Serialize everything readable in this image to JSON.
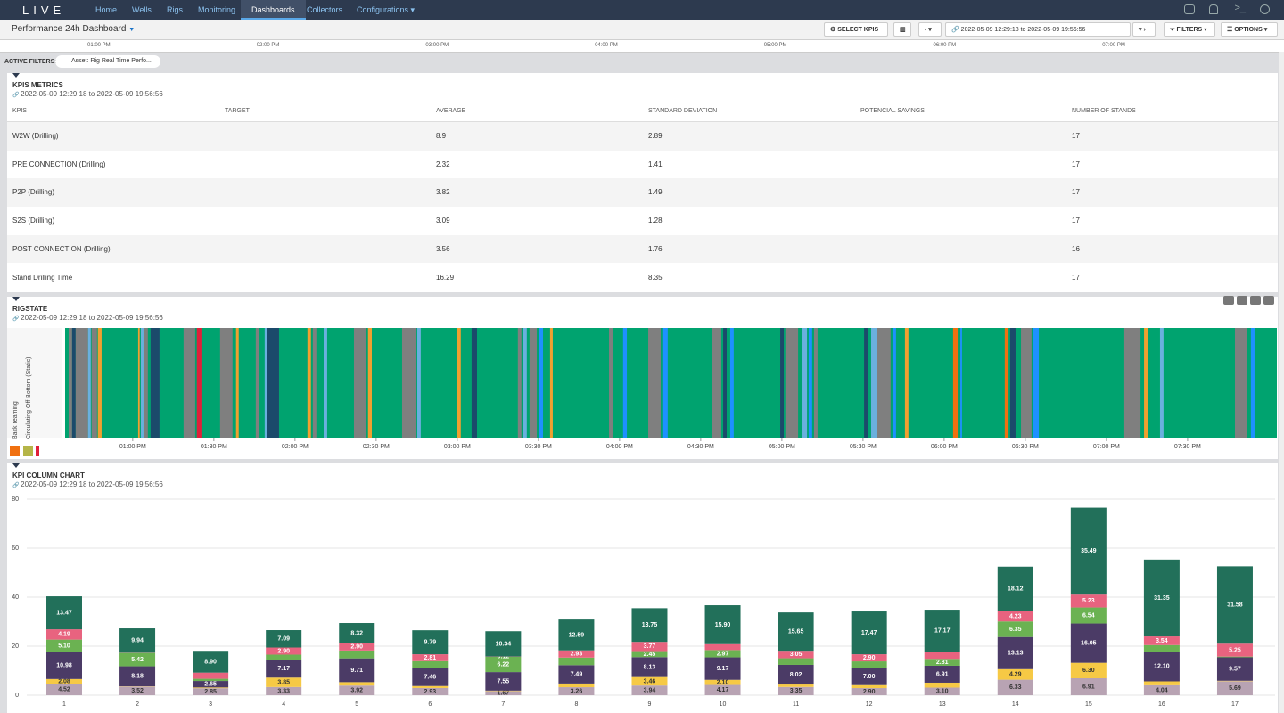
{
  "nav": {
    "logo": "LIVE",
    "items": [
      "Home",
      "Wells",
      "Rigs",
      "Monitoring",
      "Dashboards",
      "Collectors",
      "Configurations"
    ],
    "active": 4
  },
  "toolbar": {
    "title": "Performance 24h Dashboard",
    "select_kpis": "SELECT KPIS",
    "range": "2022-05-09 12:29:18 to 2022-05-09 19:56:56",
    "filters": "FILTERS",
    "options": "OPTIONS"
  },
  "timeline": [
    "01:00 PM",
    "02:00 PM",
    "03:00 PM",
    "04:00 PM",
    "05:00 PM",
    "06:00 PM",
    "07:00 PM"
  ],
  "active_filters": {
    "label": "ACTIVE FILTERS:",
    "chip": "Asset:  Rig Real Time Perfo..."
  },
  "kpi_table": {
    "title": "KPIS METRICS",
    "range": "2022-05-09 12:29:18 to 2022-05-09 19:56:56",
    "headers": [
      "KPIS",
      "TARGET",
      "AVERAGE",
      "STANDARD DEVIATION",
      "POTENCIAL SAVINGS",
      "NUMBER OF STANDS"
    ],
    "rows": [
      [
        "W2W (Drilling)",
        null,
        "8.9",
        "2.89",
        null,
        "17"
      ],
      [
        "PRE CONNECTION (Drilling)",
        null,
        "2.32",
        "1.41",
        null,
        "17"
      ],
      [
        "P2P (Drilling)",
        null,
        "3.82",
        "1.49",
        null,
        "17"
      ],
      [
        "S2S (Drilling)",
        null,
        "3.09",
        "1.28",
        null,
        "17"
      ],
      [
        "POST CONNECTION (Drilling)",
        null,
        "3.56",
        "1.76",
        null,
        "16"
      ],
      [
        "Stand Drilling Time",
        null,
        "16.29",
        "8.35",
        null,
        "17"
      ]
    ]
  },
  "chart_data": [
    {
      "type": "timeline",
      "title": "RIGSTATE",
      "range": "2022-05-09 12:29:18 to 2022-05-09 19:56:56",
      "legend": [
        {
          "name": "Back reaming",
          "color": "#f07010"
        },
        {
          "name": "Circulating Off Bottom (Static)",
          "color": "#b5b548"
        },
        {
          "color": "#e0203a"
        }
      ],
      "base_color": "#00a36f",
      "xlim": [
        35,
        483
      ],
      "xticks": [
        {
          "value": 60,
          "label": "01:00 PM"
        },
        {
          "value": 90,
          "label": "01:30 PM"
        },
        {
          "value": 120,
          "label": "02:00 PM"
        },
        {
          "value": 150,
          "label": "02:30 PM"
        },
        {
          "value": 180,
          "label": "03:00 PM"
        },
        {
          "value": 210,
          "label": "03:30 PM"
        },
        {
          "value": 240,
          "label": "04:00 PM"
        },
        {
          "value": 270,
          "label": "04:30 PM"
        },
        {
          "value": 300,
          "label": "05:00 PM"
        },
        {
          "value": 330,
          "label": "05:30 PM"
        },
        {
          "value": 360,
          "label": "06:00 PM"
        },
        {
          "value": 390,
          "label": "06:30 PM"
        },
        {
          "value": 420,
          "label": "07:00 PM"
        },
        {
          "value": 450,
          "label": "07:30 PM"
        }
      ],
      "segments": [
        [
          36.3,
          37.6,
          "#7f7f7f"
        ],
        [
          37.6,
          38.9,
          "#1b4a6b"
        ],
        [
          38.9,
          43.5,
          "#7f7f7f"
        ],
        [
          43.5,
          44.5,
          "#6ab0de"
        ],
        [
          44.8,
          46.8,
          "#7f7f7f"
        ],
        [
          47.1,
          48.5,
          "#f0a030"
        ],
        [
          62.0,
          62.6,
          "#f0a030"
        ],
        [
          63.0,
          64.0,
          "#6ab0de"
        ],
        [
          64.3,
          65.6,
          "#7f7f7f"
        ],
        [
          66.6,
          69.9,
          "#1b4a6b"
        ],
        [
          78.8,
          83.1,
          "#7f7f7f"
        ],
        [
          83.7,
          85.4,
          "#e0203a"
        ],
        [
          92.3,
          96.9,
          "#7f7f7f"
        ],
        [
          98.2,
          99.2,
          "#f0a030"
        ],
        [
          105.5,
          106.8,
          "#7f7f7f"
        ],
        [
          108.8,
          109.5,
          "#6ab0de"
        ],
        [
          109.8,
          114.1,
          "#1b4a6b"
        ],
        [
          124.6,
          125.9,
          "#f0a030"
        ],
        [
          126.6,
          127.9,
          "#7f7f7f"
        ],
        [
          130.6,
          131.9,
          "#6ab0de"
        ],
        [
          141.8,
          146.4,
          "#7f7f7f"
        ],
        [
          147.0,
          148.4,
          "#f0a030"
        ],
        [
          159.6,
          164.8,
          "#7f7f7f"
        ],
        [
          165.2,
          166.5,
          "#6ab0de"
        ],
        [
          180.0,
          181.3,
          "#f0a030"
        ],
        [
          185.3,
          187.3,
          "#1b4a6b"
        ],
        [
          202.4,
          203.7,
          "#7f7f7f"
        ],
        [
          204.4,
          205.7,
          "#6ab0de"
        ],
        [
          206.7,
          209.4,
          "#7f7f7f"
        ],
        [
          210.3,
          211.7,
          "#1e90ff"
        ],
        [
          214.3,
          215.3,
          "#f0a030"
        ],
        [
          236.1,
          237.4,
          "#7f7f7f"
        ],
        [
          241.3,
          242.7,
          "#1e90ff"
        ],
        [
          250.6,
          255.2,
          "#7f7f7f"
        ],
        [
          255.8,
          257.8,
          "#1e90ff"
        ],
        [
          274.3,
          277.6,
          "#7f7f7f"
        ],
        [
          278.3,
          279.6,
          "#1b4a6b"
        ],
        [
          280.9,
          282.2,
          "#1e90ff"
        ],
        [
          299.4,
          300.7,
          "#1b4a6b"
        ],
        [
          301.3,
          306.0,
          "#7f7f7f"
        ],
        [
          307.3,
          309.3,
          "#6ab0de"
        ],
        [
          309.9,
          311.2,
          "#1e90ff"
        ],
        [
          311.9,
          313.2,
          "#7f7f7f"
        ],
        [
          330.4,
          331.7,
          "#1b4a6b"
        ],
        [
          333.0,
          335.0,
          "#6ab0de"
        ],
        [
          335.3,
          340.2,
          "#7f7f7f"
        ],
        [
          340.9,
          342.2,
          "#1e90ff"
        ],
        [
          345.5,
          346.8,
          "#f0a030"
        ],
        [
          363.3,
          365.0,
          "#f07010"
        ],
        [
          366.0,
          366.6,
          "#1e90ff"
        ],
        [
          382.4,
          383.8,
          "#f07010"
        ],
        [
          384.4,
          386.4,
          "#1b4a6b"
        ],
        [
          388.4,
          392.3,
          "#7f7f7f"
        ],
        [
          393.0,
          395.0,
          "#1e90ff"
        ],
        [
          426.6,
          432.6,
          "#7f7f7f"
        ],
        [
          433.9,
          435.2,
          "#f0a030"
        ],
        [
          439.8,
          441.1,
          "#6ab0de"
        ],
        [
          467.5,
          472.1,
          "#7f7f7f"
        ],
        [
          473.4,
          474.8,
          "#1e90ff"
        ]
      ]
    },
    {
      "type": "bar",
      "stacked": true,
      "title": "KPI COLUMN CHART",
      "range": "2022-05-09 12:29:18 to 2022-05-09 19:56:56",
      "categories": [
        "1",
        "2",
        "3",
        "4",
        "5",
        "6",
        "7",
        "8",
        "9",
        "10",
        "11",
        "12",
        "13",
        "14",
        "15",
        "16",
        "17"
      ],
      "ylim": [
        0,
        80
      ],
      "yticks": [
        0,
        20,
        40,
        60,
        80
      ],
      "grid": true,
      "series": [
        {
          "color": "#b8a3b3",
          "values": [
            4.52,
            3.52,
            2.85,
            3.33,
            3.92,
            2.93,
            1.67,
            3.26,
            3.94,
            4.17,
            3.35,
            2.9,
            3.1,
            6.33,
            6.91,
            4.04,
            5.69
          ],
          "value_labels": [
            "4.52",
            "3.52",
            "2.85",
            "3.33",
            "3.92",
            "2.93",
            "1.67",
            "3.26",
            "3.94",
            "4.17",
            "3.35",
            "2.90",
            "3.10",
            "6.33",
            "6.91",
            "4.04",
            "5.69"
          ]
        },
        {
          "color": "#f6c945",
          "values": [
            2.08,
            0.1,
            0.3,
            3.85,
            1.4,
            0.8,
            0.2,
            1.5,
            3.46,
            2.1,
            1.0,
            1.2,
            2.0,
            4.29,
            6.3,
            1.6,
            0.2
          ],
          "value_labels": [
            "2.08",
            null,
            null,
            "3.85",
            null,
            null,
            null,
            null,
            "3.46",
            "2.10",
            null,
            null,
            null,
            "4.29",
            "6.30",
            null,
            null
          ]
        },
        {
          "color": "#4b3b66",
          "values": [
            10.98,
            8.18,
            2.65,
            7.17,
            9.71,
            7.46,
            7.55,
            7.49,
            8.13,
            9.17,
            8.02,
            7.0,
            6.91,
            13.13,
            16.05,
            12.1,
            9.57
          ],
          "value_labels": [
            "10.98",
            "8.18",
            "2.65",
            "7.17",
            "9.71",
            "7.46",
            "7.55",
            "7.49",
            "8.13",
            "9.17",
            "8.02",
            "7.00",
            "6.91",
            "13.13",
            "16.05",
            "12.10",
            "9.57"
          ]
        },
        {
          "color": "#6bb252",
          "values": [
            5.1,
            5.42,
            0.9,
            2.2,
            3.2,
            2.7,
            6.22,
            3.1,
            2.45,
            2.97,
            2.7,
            2.7,
            2.81,
            6.35,
            6.54,
            2.7,
            0.3
          ],
          "value_labels": [
            "5.10",
            "5.42",
            null,
            null,
            null,
            null,
            "6.22",
            null,
            "2.45",
            "2.97",
            null,
            null,
            "2.81",
            "6.35",
            "6.54",
            null,
            null
          ]
        },
        {
          "color": "#e8637f",
          "values": [
            4.19,
            0.1,
            2.5,
            2.9,
            2.9,
            2.81,
            0.12,
            2.93,
            3.77,
            2.4,
            3.05,
            2.9,
            2.9,
            4.23,
            5.23,
            3.54,
            5.25
          ],
          "value_labels": [
            "4.19",
            null,
            null,
            "2.90",
            "2.90",
            "2.81",
            "0.12",
            "2.93",
            "3.77",
            null,
            "3.05",
            "2.90",
            null,
            "4.23",
            "5.23",
            "3.54",
            "5.25"
          ]
        },
        {
          "color": "#22705a",
          "values": [
            13.47,
            9.94,
            8.9,
            7.09,
            8.32,
            9.79,
            10.34,
            12.59,
            13.75,
            15.9,
            15.65,
            17.47,
            17.17,
            18.12,
            35.49,
            31.35,
            31.58
          ],
          "value_labels": [
            "13.47",
            "9.94",
            "8.90",
            "7.09",
            "8.32",
            "9.79",
            "10.34",
            "12.59",
            "13.75",
            "15.90",
            "15.65",
            "17.47",
            "17.17",
            "18.12",
            "35.49",
            "31.35",
            "31.58"
          ]
        }
      ]
    }
  ]
}
